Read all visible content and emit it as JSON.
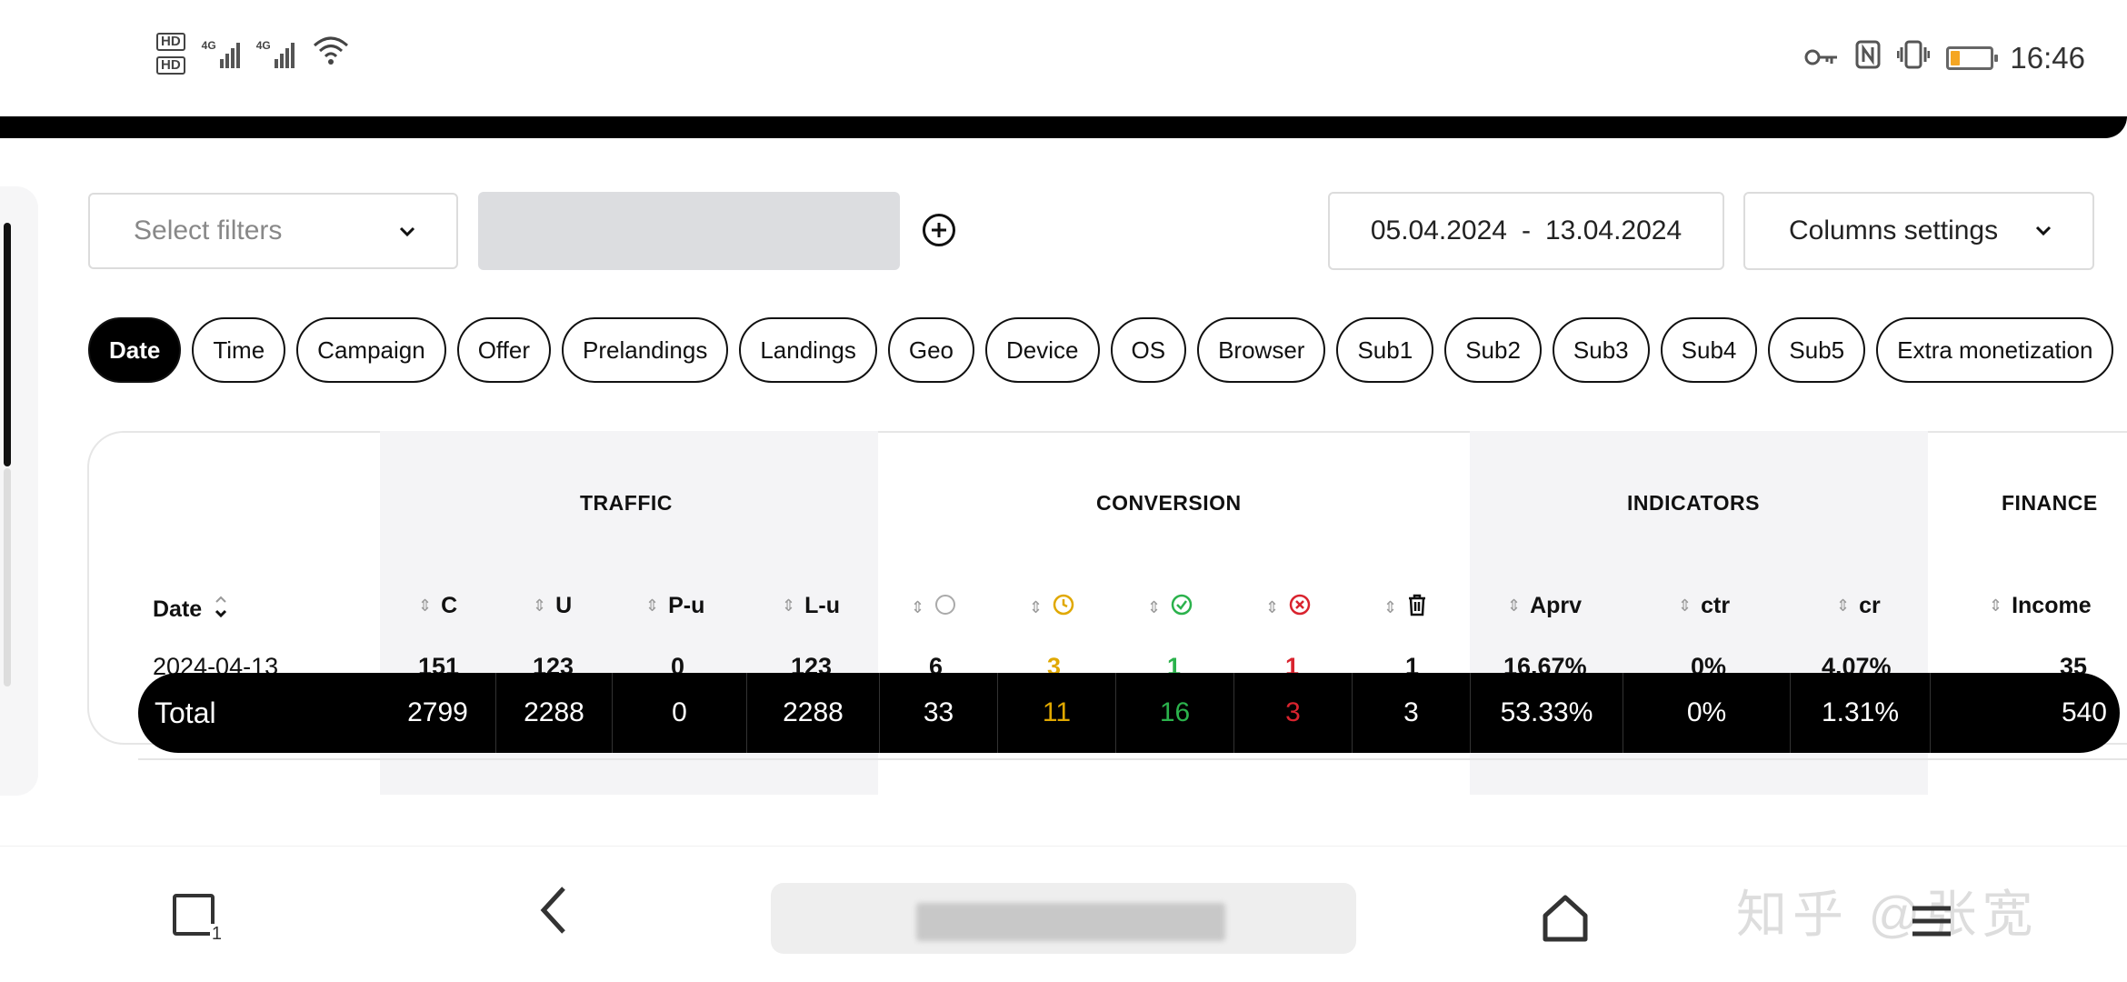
{
  "status_bar": {
    "sim1": "HD",
    "sim2": "HD",
    "net1": "4G",
    "net2": "4G",
    "time": "16:46",
    "battery_level": 0.2,
    "battery_color": "#f5a623"
  },
  "filters": {
    "select_placeholder": "Select filters",
    "date_from": "05.04.2024",
    "date_sep": "-",
    "date_to": "13.04.2024",
    "columns_settings": "Columns settings"
  },
  "group_by": {
    "chips": [
      "Date",
      "Time",
      "Campaign",
      "Offer",
      "Prelandings",
      "Landings",
      "Geo",
      "Device",
      "OS",
      "Browser",
      "Sub1",
      "Sub2",
      "Sub3",
      "Sub4",
      "Sub5",
      "Extra monetization"
    ],
    "active": "Date"
  },
  "table": {
    "groups": {
      "traffic": "TRAFFIC",
      "conversion": "CONVERSION",
      "indicators": "INDICATORS",
      "finance": "FINANCE"
    },
    "headers": {
      "date": "Date",
      "c": "C",
      "u": "U",
      "pu": "P-u",
      "lu": "L-u",
      "aprv": "Aprv",
      "ctr": "ctr",
      "cr": "cr",
      "income": "Income"
    },
    "status_icons": [
      "circle-icon",
      "clock-icon",
      "check-circle-icon",
      "x-circle-icon",
      "trash-icon"
    ],
    "status_colors": {
      "pending": "#e0a800",
      "approved": "#2bb24c",
      "rejected": "#d9232e"
    },
    "first_row": {
      "date": "2024-04-13",
      "c": "151",
      "u": "123",
      "pu": "0",
      "lu": "123",
      "s0": "6",
      "s1": "3",
      "s2": "1",
      "s3": "1",
      "s4": "1",
      "aprv": "16.67%",
      "ctr": "0%",
      "cr": "4.07%",
      "income": "35"
    },
    "total": {
      "label": "Total",
      "c": "2799",
      "u": "2288",
      "pu": "0",
      "lu": "2288",
      "s0": "33",
      "s1": "11",
      "s2": "16",
      "s3": "3",
      "s4": "3",
      "aprv": "53.33%",
      "ctr": "0%",
      "cr": "1.31%",
      "income": "540"
    }
  },
  "watermark": "知乎 @张宽"
}
